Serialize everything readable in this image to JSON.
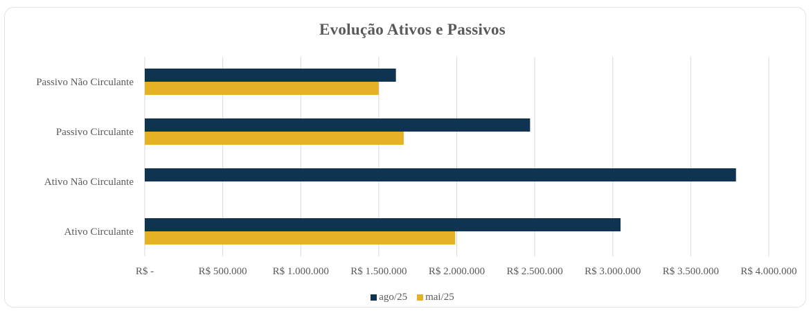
{
  "chart_data": {
    "type": "bar",
    "orientation": "horizontal",
    "title": "Evolução Ativos e Passivos",
    "categories": [
      "Passivo Não Circulante",
      "Passivo Circulante",
      "Ativo Não Circulante",
      "Ativo Circulante"
    ],
    "series": [
      {
        "name": "ago/25",
        "color": "#0f3350",
        "values": [
          1610000,
          2470000,
          3790000,
          3050000
        ]
      },
      {
        "name": "mai/25",
        "color": "#e5b125",
        "values": [
          1500000,
          1660000,
          0,
          1990000
        ]
      }
    ],
    "xlim": [
      0,
      4000000
    ],
    "x_ticks": [
      0,
      500000,
      1000000,
      1500000,
      2000000,
      2500000,
      3000000,
      3500000,
      4000000
    ],
    "x_tick_labels": [
      "R$ -",
      "R$ 500.000",
      "R$ 1.000.000",
      "R$ 1.500.000",
      "R$ 2.000.000",
      "R$ 2.500.000",
      "R$ 3.000.000",
      "R$ 3.500.000",
      "R$ 4.000.000"
    ],
    "grid": true,
    "legend_position": "bottom"
  }
}
